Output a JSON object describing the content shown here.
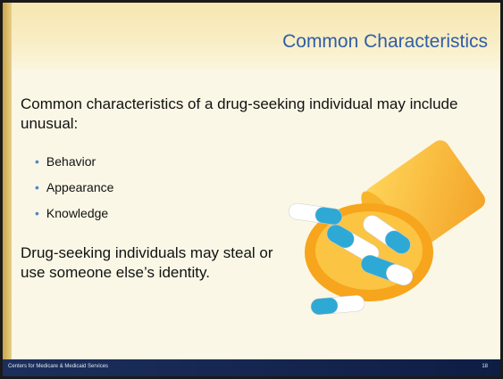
{
  "header": {
    "title": "Common Characteristics"
  },
  "body": {
    "intro": "Common characteristics of a drug-seeking individual may include unusual:",
    "bullets": [
      "Behavior",
      "Appearance",
      "Knowledge"
    ],
    "closing": "Drug-seeking individuals may steal or use someone else’s identity."
  },
  "footer": {
    "organization": "Centers for Medicare & Medicaid Services",
    "page": "18"
  }
}
